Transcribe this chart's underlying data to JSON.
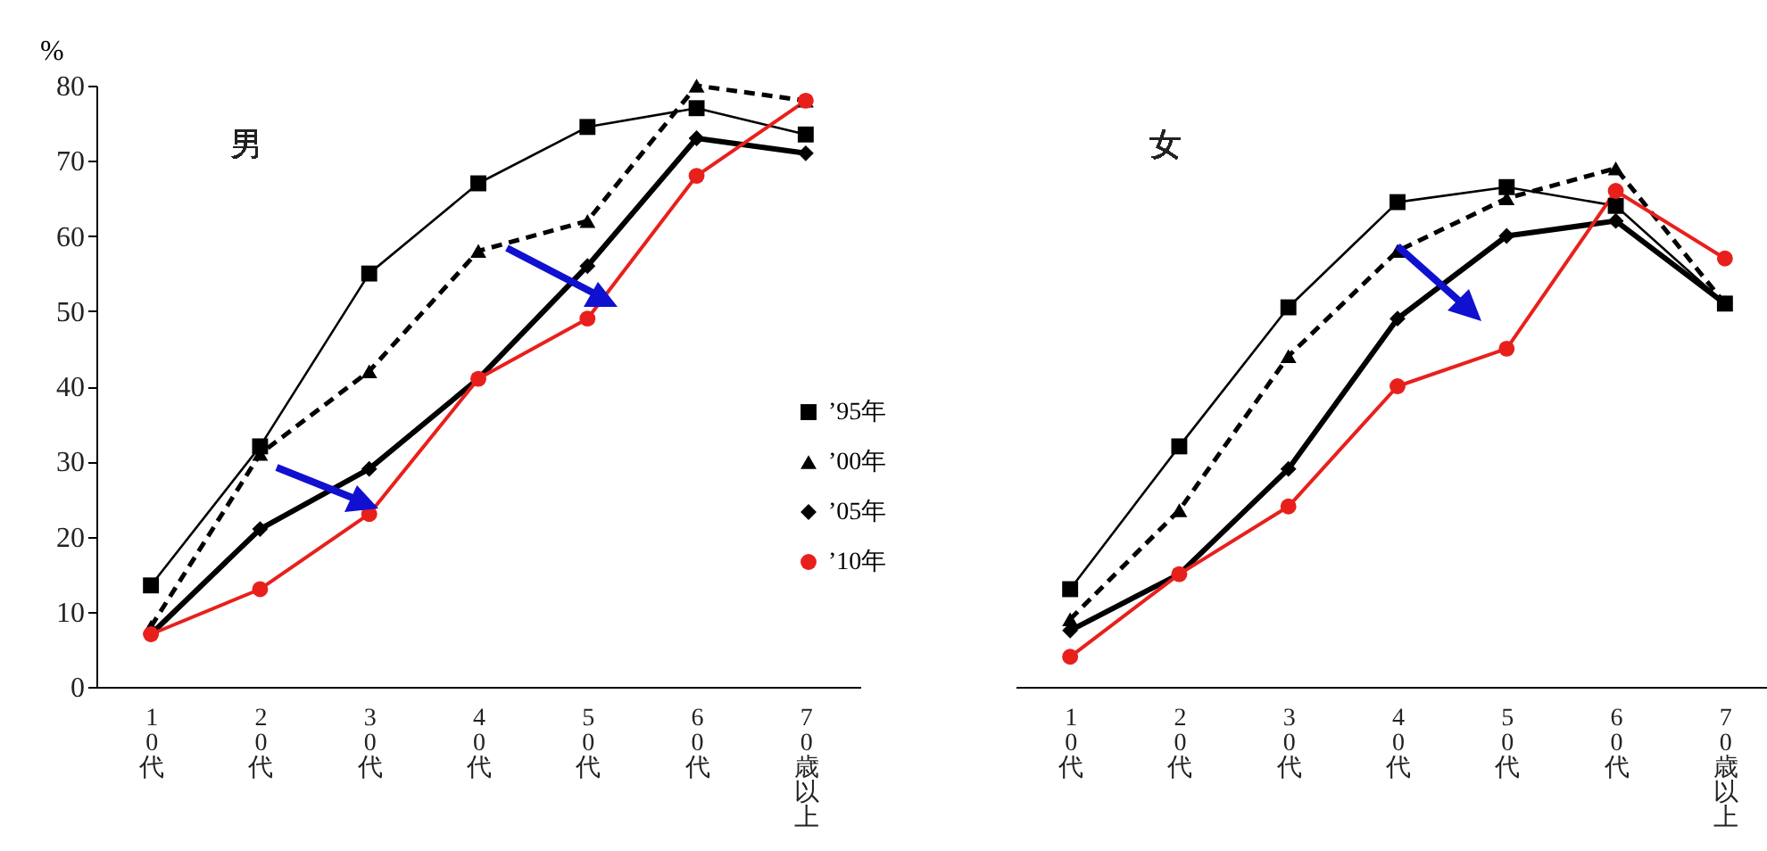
{
  "chart_data": [
    {
      "type": "line",
      "title": "男",
      "ylabel": "%",
      "categories": [
        "10代",
        "20代",
        "30代",
        "40代",
        "50代",
        "60代",
        "70歳以上"
      ],
      "ylim": [
        0,
        80
      ],
      "yticks": [
        0,
        10,
        20,
        30,
        40,
        50,
        60,
        70,
        80
      ],
      "grid": false,
      "legend": "right",
      "series": [
        {
          "name": "’95年",
          "color": "#000000",
          "marker": "square",
          "line_style": "solid",
          "values": [
            13.5,
            32,
            55,
            67,
            74.5,
            77,
            73.5
          ]
        },
        {
          "name": "’00年",
          "color": "#000000",
          "marker": "triangle",
          "line_style": "dashed",
          "values": [
            8,
            31,
            42,
            58,
            62,
            80,
            78
          ]
        },
        {
          "name": "’05年",
          "color": "#000000",
          "marker": "diamond",
          "line_style": "solid",
          "values": [
            7,
            21,
            29,
            41,
            56,
            73,
            71
          ]
        },
        {
          "name": "’10年",
          "color": "#e8201c",
          "marker": "circle",
          "line_style": "solid",
          "values": [
            7,
            13,
            23,
            41,
            49,
            68,
            78
          ]
        }
      ]
    },
    {
      "type": "line",
      "title": "女",
      "categories": [
        "10代",
        "20代",
        "30代",
        "40代",
        "50代",
        "60代",
        "70歳以上"
      ],
      "ylim": [
        0,
        80
      ],
      "yticks": [
        0,
        10,
        20,
        30,
        40,
        50,
        60,
        70,
        80
      ],
      "grid": false,
      "tick_labels": "x",
      "series": [
        {
          "color": "#000000",
          "marker": "square",
          "line_style": "solid",
          "values": [
            13,
            32,
            50.5,
            64.5,
            66.5,
            64,
            51
          ]
        },
        {
          "color": "#000000",
          "marker": "triangle",
          "line_style": "dashed",
          "values": [
            9,
            23.5,
            44,
            58,
            65,
            69,
            51
          ]
        },
        {
          "color": "#000000",
          "marker": "diamond",
          "line_style": "solid",
          "values": [
            7.5,
            15,
            29,
            49,
            60,
            62,
            51
          ]
        },
        {
          "color": "#e8201c",
          "marker": "circle",
          "line_style": "solid",
          "values": [
            4,
            15,
            24,
            40,
            45,
            66,
            57
          ]
        }
      ]
    }
  ]
}
